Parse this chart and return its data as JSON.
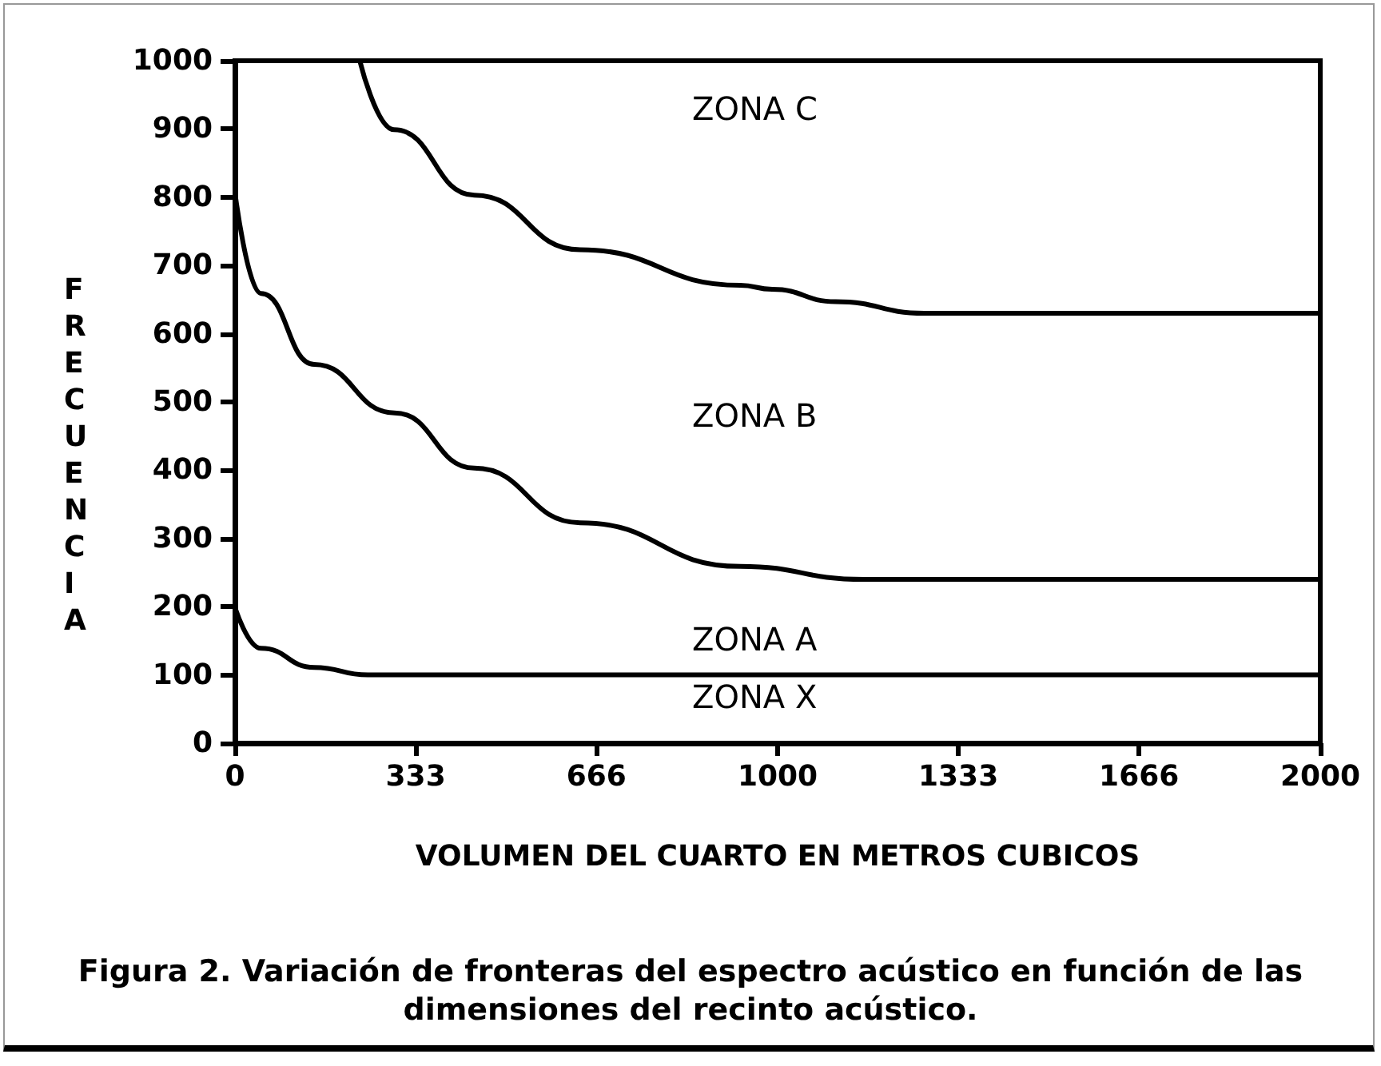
{
  "chart_data": {
    "type": "line",
    "xlabel": "VOLUMEN DEL CUARTO EN METROS CUBICOS",
    "ylabel": "FRECUENCIA",
    "series": [
      {
        "color": "#000000",
        "x": [
          230,
          293,
          441,
          636,
          931,
          990,
          1107,
          1270,
          2000
        ],
        "values": [
          1000,
          899,
          803,
          723,
          671,
          665,
          647,
          630,
          630
        ]
      },
      {
        "color": "#000000",
        "x": [
          0,
          48,
          146,
          294,
          441,
          636,
          931,
          1158,
          2000
        ],
        "values": [
          807,
          659,
          555,
          484,
          403,
          323,
          259,
          240,
          240
        ]
      },
      {
        "color": "#000000",
        "x": [
          0,
          48,
          146,
          245,
          2000
        ],
        "values": [
          199,
          139,
          111,
          100,
          100
        ]
      }
    ],
    "xlim": [
      0,
      2000
    ],
    "xticks": [
      0,
      333,
      666,
      1000,
      1333,
      1666,
      2000
    ],
    "ylim": [
      0,
      1000
    ],
    "yticks": [
      0,
      100,
      200,
      300,
      400,
      500,
      600,
      700,
      800,
      900,
      1000
    ],
    "grid": false,
    "marker": "none",
    "line_style": "solid",
    "annotations": [
      "ZONA C",
      "ZONA B",
      "ZONA A",
      "ZONA X",
      "Figura 2. Variación de fronteras del espectro acústico en función de las dimensiones del recinto acústico."
    ]
  }
}
